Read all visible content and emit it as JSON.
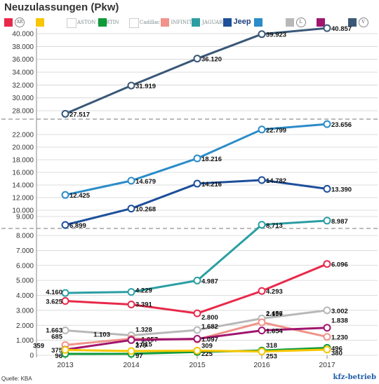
{
  "title": "Neuzulassungen (Pkw)",
  "source": "Quelle: KBA",
  "brand": "kfz-betrieb",
  "legend": [
    {
      "name": "alfa-romeo",
      "color": "#e8294a",
      "mark": "circle",
      "text": "AR"
    },
    {
      "name": "chevrolet",
      "color": "#f7c600",
      "mark": "logo",
      "text": ""
    },
    {
      "name": "aston-martin",
      "color": "#ffffff",
      "mark": "logo",
      "text": "ASTON MARTIN"
    },
    {
      "name": "subaru",
      "color": "#0f9b3a",
      "mark": "logo",
      "text": ""
    },
    {
      "name": "cadillac",
      "color": "#ffffff",
      "mark": "logo",
      "text": "Cadillac"
    },
    {
      "name": "infiniti",
      "color": "#f0938a",
      "mark": "logo",
      "text": "INFINITI"
    },
    {
      "name": "jaguar",
      "color": "#2b9ea3",
      "mark": "logo",
      "text": "JAGUAR"
    },
    {
      "name": "jeep",
      "color": "#1d4f9a",
      "mark": "logo-bold",
      "text": "Jeep"
    },
    {
      "name": "land-rover",
      "color": "#2b8cc8",
      "mark": "logo",
      "text": ""
    },
    {
      "name": "lexus",
      "color": "#b8b8b8",
      "mark": "circle",
      "text": "L"
    },
    {
      "name": "maserati",
      "color": "#a0156e",
      "mark": "logo",
      "text": ""
    },
    {
      "name": "volvo",
      "color": "#3a5878",
      "mark": "circle",
      "text": "V"
    }
  ],
  "chart_data": {
    "type": "line",
    "x": [
      2013,
      2014,
      2015,
      2016,
      2017
    ],
    "axis_breaks": true,
    "grid": "horizontal",
    "panels": [
      {
        "ylim": [
          28000,
          40000
        ],
        "yticks": [
          28000,
          30000,
          32000,
          34000,
          36000,
          38000,
          40000
        ],
        "tick_labels": [
          "28.000",
          "30.000",
          "32.000",
          "34.000",
          "36.000",
          "38.000",
          "40.000"
        ]
      },
      {
        "ylim": [
          9000,
          22000
        ],
        "yticks": [
          9000,
          10000,
          12000,
          14000,
          16000,
          18000,
          20000,
          22000
        ],
        "tick_labels": [
          "9.000",
          "10.000",
          "12.000",
          "14.000",
          "16.000",
          "18.000",
          "20.000",
          "22.000"
        ]
      },
      {
        "ylim": [
          0,
          8000
        ],
        "yticks": [
          0,
          1000,
          2000,
          3000,
          4000,
          5000,
          6000,
          7000,
          8000
        ],
        "tick_labels": [
          "0",
          "1.000",
          "2.000",
          "3.000",
          "4.000",
          "5.000",
          "6.000",
          "7.000",
          "8.000"
        ]
      }
    ],
    "series": [
      {
        "brand": "volvo",
        "color": "#3a5878",
        "panel": 0,
        "values": [
          27517,
          31919,
          36120,
          39923,
          40857
        ],
        "labels": [
          "27.517",
          "31.919",
          "36.120",
          "39.923",
          "40.857"
        ]
      },
      {
        "brand": "land-rover",
        "color": "#2b8cc8",
        "panel": 1,
        "values": [
          12425,
          14679,
          18216,
          22799,
          23656
        ],
        "labels": [
          "12.425",
          "14.679",
          "18.216",
          "22.799",
          "23.656"
        ]
      },
      {
        "brand": "jeep",
        "color": "#1d4f9a",
        "panel": 1,
        "values": [
          6899,
          10268,
          14216,
          14782,
          13390
        ],
        "labels": [
          "6.899",
          "10.268",
          "14.216",
          "14.782",
          "13.390"
        ]
      },
      {
        "brand": "jaguar",
        "color": "#2b9ea3",
        "panel": 2,
        "values": [
          4160,
          4229,
          4987,
          8713,
          8987
        ],
        "labels": [
          "4.160",
          "4.229",
          "4.987",
          "8.713",
          "8.987"
        ]
      },
      {
        "brand": "alfa-romeo",
        "color": "#e8294a",
        "panel": 2,
        "values": [
          3625,
          3391,
          2800,
          4293,
          6096
        ],
        "labels": [
          "3.625",
          "3.391",
          "2.800",
          "4.293",
          "6.096"
        ]
      },
      {
        "brand": "lexus",
        "color": "#b8b8b8",
        "panel": 2,
        "values": [
          1663,
          1328,
          1682,
          2456,
          3002
        ],
        "labels": [
          "1.663",
          "1.328",
          "1.682",
          "2.456",
          "3.002"
        ]
      },
      {
        "brand": "infiniti",
        "color": "#f0938a",
        "panel": 2,
        "values": [
          685,
          1103,
          1057,
          2197,
          1230
        ],
        "labels": [
          "685",
          "1.103",
          "1.057",
          "2.197",
          "1.230"
        ]
      },
      {
        "brand": "maserati",
        "color": "#a0156e",
        "panel": 2,
        "values": [
          375,
          1015,
          1097,
          1654,
          1838
        ],
        "labels": [
          "375",
          "1.015",
          "1.097",
          "1.654",
          "1.838"
        ]
      },
      {
        "brand": "subaru",
        "color": "#0f9b3a",
        "panel": 2,
        "values": [
          96,
          97,
          225,
          318,
          496
        ],
        "labels": [
          "96",
          "97",
          "225",
          "318",
          "496"
        ]
      },
      {
        "brand": "chevrolet",
        "color": "#f7c600",
        "panel": 2,
        "values": [
          359,
          279,
          309,
          253,
          380
        ],
        "labels": [
          "359",
          "279",
          "309",
          "253",
          "380"
        ]
      }
    ]
  }
}
